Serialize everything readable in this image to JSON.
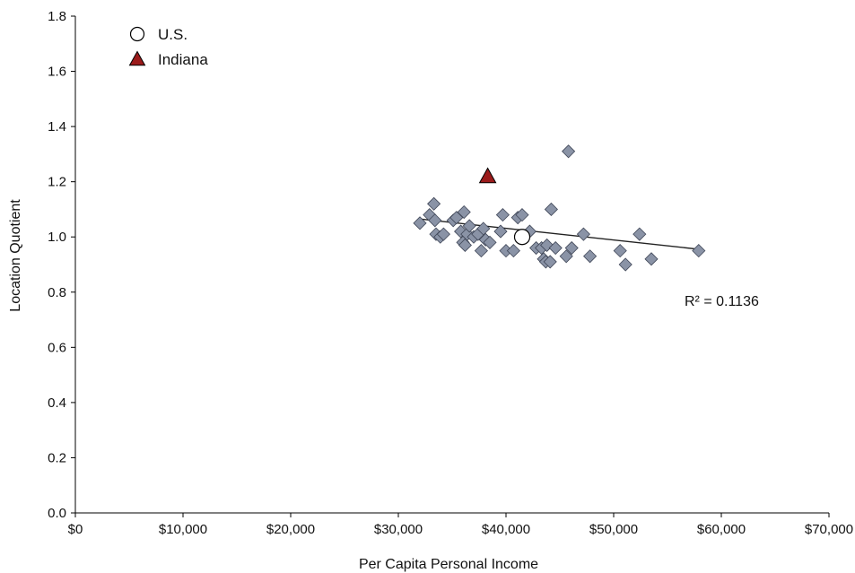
{
  "chart_data": {
    "type": "scatter",
    "xlabel": "Per Capita Personal Income",
    "ylabel": "Location Quotient",
    "xlim": [
      0,
      70000
    ],
    "ylim": [
      0,
      1.8
    ],
    "x_ticks": [
      0,
      10000,
      20000,
      30000,
      40000,
      50000,
      60000,
      70000
    ],
    "x_tick_labels": [
      "$0",
      "$10,000",
      "$20,000",
      "$30,000",
      "$40,000",
      "$50,000",
      "$60,000",
      "$70,000"
    ],
    "y_ticks": [
      0,
      0.2,
      0.4,
      0.6,
      0.8,
      1.0,
      1.2,
      1.4,
      1.6,
      1.8
    ],
    "y_tick_labels": [
      "0.0",
      "0.2",
      "0.4",
      "0.6",
      "0.8",
      "1.0",
      "1.2",
      "1.4",
      "1.6",
      "1.8"
    ],
    "grid": false,
    "legend_position": "top-left",
    "legend": [
      {
        "label": "U.S.",
        "marker": "circle",
        "color": "#ffffff"
      },
      {
        "label": "Indiana",
        "marker": "triangle",
        "color": "#9b1b1b"
      }
    ],
    "annotation": "R² = 0.1136",
    "colors": {
      "states": "#8a93a6",
      "states_stroke": "#3f4657",
      "indiana": "#9b1b1b",
      "trend": "#222222"
    },
    "series": [
      {
        "marker": "diamond",
        "points": [
          [
            32000,
            1.05
          ],
          [
            32900,
            1.08
          ],
          [
            33300,
            1.12
          ],
          [
            33400,
            1.06
          ],
          [
            33500,
            1.01
          ],
          [
            33900,
            1.0
          ],
          [
            34200,
            1.01
          ],
          [
            35100,
            1.06
          ],
          [
            35400,
            1.07
          ],
          [
            35800,
            1.02
          ],
          [
            36000,
            0.98
          ],
          [
            36100,
            1.09
          ],
          [
            36200,
            0.97
          ],
          [
            36400,
            1.01
          ],
          [
            36600,
            1.04
          ],
          [
            37000,
            1.0
          ],
          [
            37400,
            1.01
          ],
          [
            37700,
            0.95
          ],
          [
            37900,
            1.03
          ],
          [
            38100,
            0.99
          ],
          [
            38500,
            0.98
          ],
          [
            39500,
            1.02
          ],
          [
            39700,
            1.08
          ],
          [
            40000,
            0.95
          ],
          [
            40700,
            0.95
          ],
          [
            41100,
            1.07
          ],
          [
            41500,
            1.08
          ],
          [
            42200,
            1.02
          ],
          [
            42800,
            0.96
          ],
          [
            43300,
            0.96
          ],
          [
            43500,
            0.92
          ],
          [
            43700,
            0.91
          ],
          [
            43800,
            0.97
          ],
          [
            44100,
            0.91
          ],
          [
            44200,
            1.1
          ],
          [
            44600,
            0.96
          ],
          [
            45800,
            1.31
          ],
          [
            45600,
            0.93
          ],
          [
            46100,
            0.96
          ],
          [
            47200,
            1.01
          ],
          [
            47800,
            0.93
          ],
          [
            50600,
            0.95
          ],
          [
            51100,
            0.9
          ],
          [
            52400,
            1.01
          ],
          [
            53500,
            0.92
          ],
          [
            57900,
            0.95
          ]
        ]
      },
      {
        "name": "U.S.",
        "marker": "circle",
        "points": [
          [
            41500,
            1.0
          ]
        ]
      },
      {
        "name": "Indiana",
        "marker": "triangle",
        "points": [
          [
            38300,
            1.22
          ]
        ]
      }
    ],
    "trendline": {
      "x": [
        32000,
        58000
      ],
      "y": [
        1.065,
        0.955
      ]
    }
  }
}
